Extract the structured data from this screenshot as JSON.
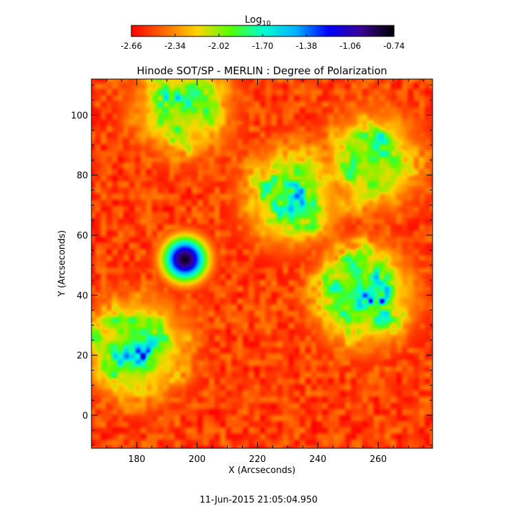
{
  "chart_data": {
    "type": "heatmap",
    "title": "Hinode SOT/SP - MERLIN : Degree of Polarization",
    "xlabel": "X (Arcseconds)",
    "ylabel": "Y (Arcseconds)",
    "xlim": [
      165,
      278
    ],
    "ylim": [
      -11,
      112
    ],
    "xticks": [
      180,
      200,
      220,
      240,
      260
    ],
    "yticks": [
      0,
      20,
      40,
      60,
      80,
      100
    ],
    "colorbar": {
      "label_base": "Log",
      "label_sub": "10",
      "ticks": [
        "-2.66",
        "-2.34",
        "-2.02",
        "-1.70",
        "-1.38",
        "-1.06",
        "-0.74"
      ],
      "range": [
        -2.66,
        -0.74
      ],
      "colormap": [
        "#ff0000",
        "#ff6a00",
        "#ffd400",
        "#55ff00",
        "#00ffd0",
        "#00b4ff",
        "#0000ff",
        "#3a0090",
        "#000000"
      ]
    },
    "features": [
      {
        "kind": "spot",
        "x": 196,
        "y": 52,
        "level": -0.8
      },
      {
        "kind": "network",
        "x": 255,
        "y": 40,
        "level": -1.1
      },
      {
        "kind": "network",
        "x": 180,
        "y": 22,
        "level": -1.15
      },
      {
        "kind": "network",
        "x": 232,
        "y": 73,
        "level": -1.3
      },
      {
        "kind": "network",
        "x": 258,
        "y": 85,
        "level": -1.4
      },
      {
        "kind": "network",
        "x": 195,
        "y": 103,
        "level": -1.4
      }
    ]
  },
  "footer": {
    "timestamp": "11-Jun-2015 21:05:04.950"
  }
}
